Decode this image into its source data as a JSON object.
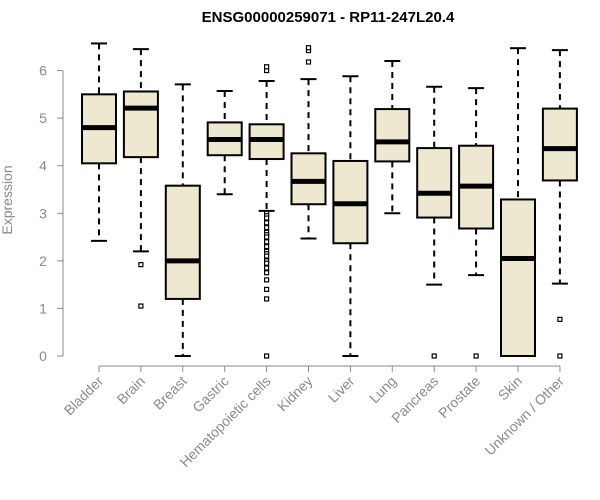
{
  "chart_data": {
    "type": "boxplot",
    "title": "ENSG00000259071 - RP11-247L20.4",
    "xlabel": "",
    "ylabel": "Expression",
    "ylim": [
      0,
      6.6
    ],
    "yticks": [
      0,
      1,
      2,
      3,
      4,
      5,
      6
    ],
    "box_color": "#efe8d0",
    "line_color": "#000000",
    "axis_color": "#8a8a8a",
    "series": [
      {
        "name": "Bladder",
        "whisker_low": 2.42,
        "q1": 4.05,
        "median": 4.8,
        "q3": 5.5,
        "whisker_high": 6.57,
        "outliers": []
      },
      {
        "name": "Brain",
        "whisker_low": 2.2,
        "q1": 4.18,
        "median": 5.21,
        "q3": 5.56,
        "whisker_high": 6.45,
        "outliers": [
          1.92,
          1.05
        ]
      },
      {
        "name": "Breast",
        "whisker_low": 0.0,
        "q1": 1.2,
        "median": 2.0,
        "q3": 3.58,
        "whisker_high": 5.71,
        "outliers": []
      },
      {
        "name": "Gastric",
        "whisker_low": 3.4,
        "q1": 4.22,
        "median": 4.55,
        "q3": 4.91,
        "whisker_high": 5.57,
        "outliers": []
      },
      {
        "name": "Hematopoietic cells",
        "whisker_low": 3.05,
        "q1": 4.14,
        "median": 4.55,
        "q3": 4.87,
        "whisker_high": 5.78,
        "outliers": [
          6.0,
          6.08,
          3.0,
          2.95,
          2.9,
          2.8,
          2.7,
          2.6,
          2.55,
          2.5,
          2.4,
          2.3,
          2.2,
          2.15,
          2.1,
          2.0,
          1.95,
          1.85,
          1.75,
          1.6,
          1.4,
          1.2,
          0.0
        ]
      },
      {
        "name": "Kidney",
        "whisker_low": 2.47,
        "q1": 3.19,
        "median": 3.67,
        "q3": 4.26,
        "whisker_high": 5.82,
        "outliers": [
          6.18,
          6.42,
          6.48
        ]
      },
      {
        "name": "Liver",
        "whisker_low": 0.0,
        "q1": 2.37,
        "median": 3.2,
        "q3": 4.1,
        "whisker_high": 5.88,
        "outliers": []
      },
      {
        "name": "Lung",
        "whisker_low": 3.0,
        "q1": 4.09,
        "median": 4.5,
        "q3": 5.19,
        "whisker_high": 6.2,
        "outliers": []
      },
      {
        "name": "Pancreas",
        "whisker_low": 1.5,
        "q1": 2.91,
        "median": 3.42,
        "q3": 4.37,
        "whisker_high": 5.66,
        "outliers": [
          0.0
        ]
      },
      {
        "name": "Prostate",
        "whisker_low": 1.7,
        "q1": 2.68,
        "median": 3.57,
        "q3": 4.42,
        "whisker_high": 5.63,
        "outliers": [
          0.0
        ]
      },
      {
        "name": "Skin",
        "whisker_low": 0.0,
        "q1": 0.0,
        "median": 2.05,
        "q3": 3.29,
        "whisker_high": 6.47,
        "outliers": []
      },
      {
        "name": "Unknown / Other",
        "whisker_low": 1.52,
        "q1": 3.69,
        "median": 4.36,
        "q3": 5.2,
        "whisker_high": 6.43,
        "outliers": [
          0.77,
          0.0
        ]
      }
    ]
  }
}
